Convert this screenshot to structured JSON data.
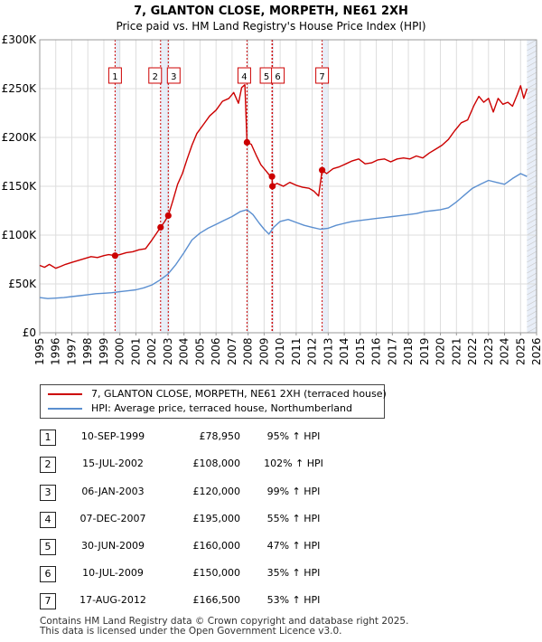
{
  "chart_data": {
    "type": "line",
    "title": "7, GLANTON CLOSE, MORPETH, NE61 2XH",
    "subtitle": "Price paid vs. HM Land Registry's House Price Index (HPI)",
    "xlim": [
      1995,
      2026
    ],
    "ylim": [
      0,
      300000
    ],
    "ytick_values": [
      0,
      50000,
      100000,
      150000,
      200000,
      250000,
      300000
    ],
    "ytick_labels": [
      "£0",
      "£50K",
      "£100K",
      "£150K",
      "£200K",
      "£250K",
      "£300K"
    ],
    "xtick_labels": [
      "1995",
      "1996",
      "1997",
      "1998",
      "1999",
      "2000",
      "2001",
      "2002",
      "2003",
      "2004",
      "2005",
      "2006",
      "2007",
      "2008",
      "2009",
      "2010",
      "2011",
      "2012",
      "2013",
      "2014",
      "2015",
      "2016",
      "2017",
      "2018",
      "2019",
      "2020",
      "2021",
      "2022",
      "2023",
      "2024",
      "2025",
      "2026"
    ],
    "shaded_ranges": [
      [
        1999.7,
        2000.0
      ],
      [
        2002.54,
        2003.1
      ],
      [
        2007.93,
        2008.0
      ],
      [
        2009.49,
        2009.6
      ],
      [
        2012.62,
        2013.0
      ],
      [
        2025.4,
        2026
      ]
    ],
    "series": [
      {
        "name": "7, GLANTON CLOSE, MORPETH, NE61 2XH (terraced house)",
        "color": "#cc0000",
        "x": [
          1995.0,
          1995.3,
          1995.6,
          1996.0,
          1996.3,
          1996.6,
          1997.0,
          1997.4,
          1997.8,
          1998.2,
          1998.6,
          1999.0,
          1999.3,
          1999.7,
          2000.0,
          2000.4,
          2000.8,
          2001.2,
          2001.6,
          2002.0,
          2002.54,
          2002.8,
          2003.02,
          2003.3,
          2003.6,
          2003.9,
          2004.2,
          2004.5,
          2004.8,
          2005.2,
          2005.6,
          2006.0,
          2006.4,
          2006.8,
          2007.1,
          2007.4,
          2007.6,
          2007.8,
          2007.93,
          2008.2,
          2008.5,
          2008.8,
          2009.1,
          2009.3,
          2009.49,
          2009.52,
          2009.8,
          2010.2,
          2010.6,
          2011.0,
          2011.4,
          2011.8,
          2012.1,
          2012.4,
          2012.62,
          2012.9,
          2013.3,
          2013.7,
          2014.1,
          2014.5,
          2014.9,
          2015.3,
          2015.7,
          2016.1,
          2016.5,
          2016.9,
          2017.3,
          2017.7,
          2018.1,
          2018.5,
          2018.9,
          2019.3,
          2019.7,
          2020.1,
          2020.5,
          2020.9,
          2021.3,
          2021.7,
          2022.1,
          2022.4,
          2022.7,
          2023.0,
          2023.3,
          2023.6,
          2023.9,
          2024.2,
          2024.5,
          2024.8,
          2025.0,
          2025.2,
          2025.4
        ],
        "y": [
          69000,
          67000,
          70000,
          66000,
          68000,
          70000,
          72000,
          74000,
          76000,
          78000,
          77000,
          79000,
          80000,
          78950,
          80000,
          82000,
          83000,
          85000,
          86000,
          95000,
          108000,
          114000,
          120000,
          135000,
          152000,
          163000,
          178000,
          192000,
          204000,
          213000,
          222000,
          228000,
          237000,
          240000,
          246000,
          235000,
          251000,
          254000,
          195000,
          193000,
          182000,
          172000,
          166000,
          162000,
          160000,
          150000,
          153000,
          150000,
          154000,
          151000,
          149000,
          148000,
          145000,
          140000,
          166500,
          163000,
          168000,
          170000,
          173000,
          176000,
          178000,
          173000,
          174000,
          177000,
          178000,
          175000,
          178000,
          179000,
          178000,
          181000,
          179000,
          184000,
          188000,
          192000,
          198000,
          207000,
          215000,
          218000,
          233000,
          242000,
          236000,
          240000,
          226000,
          240000,
          234000,
          236000,
          232000,
          244000,
          253000,
          240000,
          250000
        ]
      },
      {
        "name": "HPI: Average price, terraced house, Northumberland",
        "color": "#5b8fd0",
        "x": [
          1995.0,
          1995.5,
          1996.0,
          1996.5,
          1997.0,
          1997.5,
          1998.0,
          1998.5,
          1999.0,
          1999.5,
          2000.0,
          2000.5,
          2001.0,
          2001.5,
          2002.0,
          2002.5,
          2003.0,
          2003.5,
          2004.0,
          2004.5,
          2005.0,
          2005.5,
          2006.0,
          2006.5,
          2007.0,
          2007.5,
          2007.93,
          2008.3,
          2008.7,
          2009.0,
          2009.3,
          2009.6,
          2010.0,
          2010.5,
          2011.0,
          2011.5,
          2012.0,
          2012.5,
          2013.0,
          2013.5,
          2014.0,
          2014.5,
          2015.0,
          2015.5,
          2016.0,
          2016.5,
          2017.0,
          2017.5,
          2018.0,
          2018.5,
          2019.0,
          2019.5,
          2020.0,
          2020.5,
          2021.0,
          2021.5,
          2022.0,
          2022.5,
          2023.0,
          2023.5,
          2024.0,
          2024.5,
          2025.0,
          2025.4
        ],
        "y": [
          36000,
          35000,
          35500,
          36000,
          37000,
          38000,
          39000,
          40000,
          40500,
          41000,
          42000,
          43000,
          44000,
          46000,
          49000,
          54000,
          60000,
          70000,
          82000,
          95000,
          102000,
          107000,
          111000,
          115000,
          119000,
          124000,
          126000,
          121000,
          112000,
          106000,
          101000,
          108000,
          114000,
          116000,
          113000,
          110000,
          108000,
          106000,
          107000,
          110000,
          112000,
          114000,
          115000,
          116000,
          117000,
          118000,
          119000,
          120000,
          121000,
          122000,
          124000,
          125000,
          126000,
          128000,
          134000,
          141000,
          148000,
          152000,
          156000,
          154000,
          152000,
          158000,
          163000,
          160000
        ]
      }
    ],
    "transactions": [
      {
        "num": "1",
        "year": 1999.7,
        "price": 78950
      },
      {
        "num": "2",
        "year": 2002.54,
        "price": 108000
      },
      {
        "num": "3",
        "year": 2003.02,
        "price": 120000
      },
      {
        "num": "4",
        "year": 2007.93,
        "price": 195000
      },
      {
        "num": "5",
        "year": 2009.49,
        "price": 160000
      },
      {
        "num": "6",
        "year": 2009.52,
        "price": 150000
      },
      {
        "num": "7",
        "year": 2012.62,
        "price": 166500
      }
    ]
  },
  "legend": {
    "property": "7, GLANTON CLOSE, MORPETH, NE61 2XH (terraced house)",
    "hpi": "HPI: Average price, terraced house, Northumberland",
    "property_color": "#cc0000",
    "hpi_color": "#5b8fd0"
  },
  "table": [
    {
      "num": "1",
      "date": "10-SEP-1999",
      "price": "£78,950",
      "hpi": "95% ↑ HPI"
    },
    {
      "num": "2",
      "date": "15-JUL-2002",
      "price": "£108,000",
      "hpi": "102% ↑ HPI"
    },
    {
      "num": "3",
      "date": "06-JAN-2003",
      "price": "£120,000",
      "hpi": "99% ↑ HPI"
    },
    {
      "num": "4",
      "date": "07-DEC-2007",
      "price": "£195,000",
      "hpi": "55% ↑ HPI"
    },
    {
      "num": "5",
      "date": "30-JUN-2009",
      "price": "£160,000",
      "hpi": "47% ↑ HPI"
    },
    {
      "num": "6",
      "date": "10-JUL-2009",
      "price": "£150,000",
      "hpi": "35% ↑ HPI"
    },
    {
      "num": "7",
      "date": "17-AUG-2012",
      "price": "£166,500",
      "hpi": "53% ↑ HPI"
    }
  ],
  "footer": {
    "line1": "Contains HM Land Registry data © Crown copyright and database right 2025.",
    "line2": "This data is licensed under the Open Government Licence v3.0."
  }
}
